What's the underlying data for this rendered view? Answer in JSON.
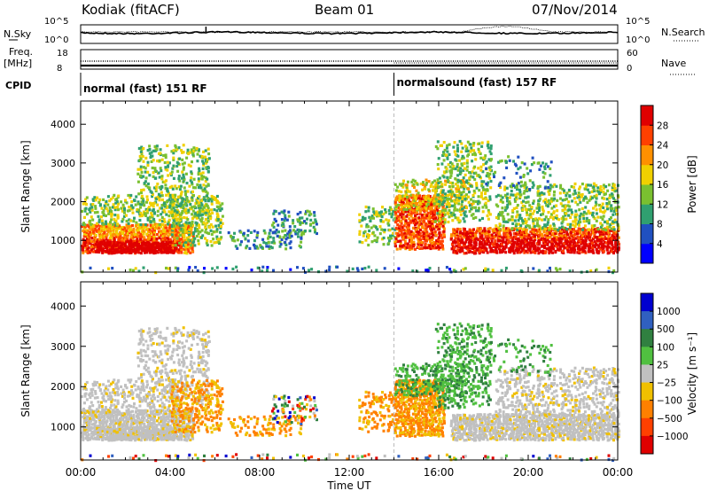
{
  "header": {
    "station": "Kodiak (fitACF)",
    "beam": "Beam 01",
    "date": "07/Nov/2014"
  },
  "top_panels": {
    "nsky_label": "N.Sky",
    "nsearch_label": "N.Search",
    "nsky_ticks": [
      "10^5",
      "10^0"
    ],
    "nsearch_ticks": [
      "10^5",
      "10^0"
    ],
    "freq_label_1": "Freq.",
    "freq_label_2": "[MHz]",
    "freq_ticks": [
      "18",
      "8"
    ],
    "nave_label": "Nave",
    "nave_ticks": [
      "60",
      "0"
    ],
    "cpid_label": "CPID",
    "cpid_segments": [
      {
        "label": "normal (fast) 151 RF",
        "start_hour": 0,
        "end_hour": 14
      },
      {
        "label": "normalsound (fast) 157 RF",
        "start_hour": 14,
        "end_hour": 24
      }
    ]
  },
  "chart_data": [
    {
      "type": "heatmap",
      "panel": "power",
      "ylabel": "Slant Range [km]",
      "xlabel": "Time UT",
      "ylim": [
        180,
        4600
      ],
      "xlim": [
        0,
        24
      ],
      "yticks": [
        1000,
        2000,
        3000,
        4000
      ],
      "xticks": [
        "00:00",
        "04:00",
        "08:00",
        "12:00",
        "16:00",
        "20:00",
        "00:00"
      ],
      "colorbar": {
        "label": "Power [dB]",
        "ticks": [
          "4",
          "8",
          "12",
          "16",
          "20",
          "24",
          "28"
        ],
        "colors": [
          "#0000ff",
          "#2050c0",
          "#30a070",
          "#7ac030",
          "#f0d000",
          "#ff9000",
          "#ff4000",
          "#e00000"
        ]
      }
    },
    {
      "type": "heatmap",
      "panel": "velocity",
      "ylabel": "Slant Range [km]",
      "xlabel": "Time UT",
      "ylim": [
        180,
        4600
      ],
      "xlim": [
        0,
        24
      ],
      "yticks": [
        1000,
        2000,
        3000,
        4000
      ],
      "xticks": [
        "00:00",
        "04:00",
        "08:00",
        "12:00",
        "16:00",
        "20:00",
        "00:00"
      ],
      "colorbar": {
        "label": "Velocity [m s⁻¹]",
        "ticks": [
          "1000",
          "500",
          "100",
          "25",
          "−25",
          "−100",
          "−500",
          "−1000"
        ],
        "colors": [
          "#0000d0",
          "#3060c0",
          "#308040",
          "#50c040",
          "#c0c0c0",
          "#f0c000",
          "#ff8000",
          "#ff4000",
          "#e00000"
        ]
      }
    }
  ],
  "xaxis_title": "Time UT"
}
